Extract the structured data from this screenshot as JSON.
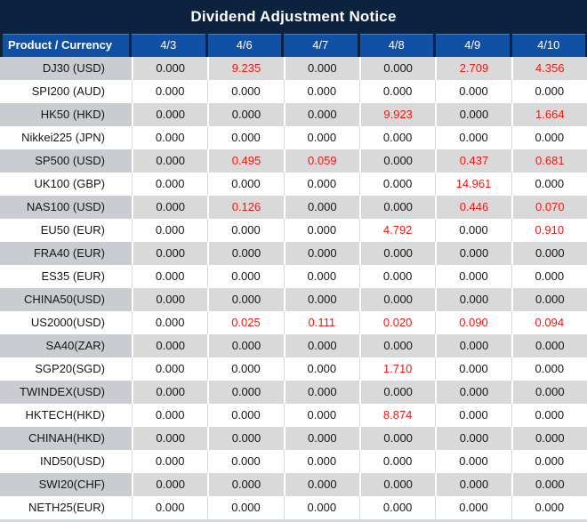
{
  "title": "Dividend Adjustment Notice",
  "colors": {
    "title_bar_navy": "#0c223e",
    "header_blue": "#1151a5",
    "header_text": "#ffffff",
    "row_gray": "#d9d9d9",
    "product_col_gray": "#c9ccd1",
    "value_black": "#161616",
    "value_red": "#fb1310"
  },
  "chart_data": {
    "type": "table",
    "title": "Dividend Adjustment Notice",
    "product_header": "Product / Currency",
    "date_headers": [
      "4/3",
      "4/6",
      "4/7",
      "4/8",
      "4/9",
      "4/10"
    ],
    "rows": [
      {
        "product": "DJ30 (USD)",
        "values": [
          "0.000",
          "9.235",
          "0.000",
          "0.000",
          "2.709",
          "4.356"
        ],
        "red_indices": [
          1,
          4,
          5
        ]
      },
      {
        "product": "SPI200 (AUD)",
        "values": [
          "0.000",
          "0.000",
          "0.000",
          "0.000",
          "0.000",
          "0.000"
        ],
        "red_indices": []
      },
      {
        "product": "HK50 (HKD)",
        "values": [
          "0.000",
          "0.000",
          "0.000",
          "9.923",
          "0.000",
          "1.664"
        ],
        "red_indices": [
          3,
          5
        ]
      },
      {
        "product": "Nikkei225 (JPN)",
        "values": [
          "0.000",
          "0.000",
          "0.000",
          "0.000",
          "0.000",
          "0.000"
        ],
        "red_indices": []
      },
      {
        "product": "SP500 (USD)",
        "values": [
          "0.000",
          "0.495",
          "0.059",
          "0.000",
          "0.437",
          "0.681"
        ],
        "red_indices": [
          1,
          2,
          4,
          5
        ]
      },
      {
        "product": "UK100 (GBP)",
        "values": [
          "0.000",
          "0.000",
          "0.000",
          "0.000",
          "14.961",
          "0.000"
        ],
        "red_indices": [
          4
        ]
      },
      {
        "product": "NAS100 (USD)",
        "values": [
          "0.000",
          "0.126",
          "0.000",
          "0.000",
          "0.446",
          "0.070"
        ],
        "red_indices": [
          1,
          4,
          5
        ]
      },
      {
        "product": "EU50 (EUR)",
        "values": [
          "0.000",
          "0.000",
          "0.000",
          "4.792",
          "0.000",
          "0.910"
        ],
        "red_indices": [
          3,
          5
        ]
      },
      {
        "product": "FRA40 (EUR)",
        "values": [
          "0.000",
          "0.000",
          "0.000",
          "0.000",
          "0.000",
          "0.000"
        ],
        "red_indices": []
      },
      {
        "product": "ES35 (EUR)",
        "values": [
          "0.000",
          "0.000",
          "0.000",
          "0.000",
          "0.000",
          "0.000"
        ],
        "red_indices": []
      },
      {
        "product": "CHINA50(USD)",
        "values": [
          "0.000",
          "0.000",
          "0.000",
          "0.000",
          "0.000",
          "0.000"
        ],
        "red_indices": []
      },
      {
        "product": "US2000(USD)",
        "values": [
          "0.000",
          "0.025",
          "0.111",
          "0.020",
          "0.090",
          "0.094"
        ],
        "red_indices": [
          1,
          2,
          3,
          4,
          5
        ]
      },
      {
        "product": "SA40(ZAR)",
        "values": [
          "0.000",
          "0.000",
          "0.000",
          "0.000",
          "0.000",
          "0.000"
        ],
        "red_indices": []
      },
      {
        "product": "SGP20(SGD)",
        "values": [
          "0.000",
          "0.000",
          "0.000",
          "1.710",
          "0.000",
          "0.000"
        ],
        "red_indices": [
          3
        ]
      },
      {
        "product": "TWINDEX(USD)",
        "values": [
          "0.000",
          "0.000",
          "0.000",
          "0.000",
          "0.000",
          "0.000"
        ],
        "red_indices": []
      },
      {
        "product": "HKTECH(HKD)",
        "values": [
          "0.000",
          "0.000",
          "0.000",
          "8.874",
          "0.000",
          "0.000"
        ],
        "red_indices": [
          3
        ]
      },
      {
        "product": "CHINAH(HKD)",
        "values": [
          "0.000",
          "0.000",
          "0.000",
          "0.000",
          "0.000",
          "0.000"
        ],
        "red_indices": []
      },
      {
        "product": "IND50(USD)",
        "values": [
          "0.000",
          "0.000",
          "0.000",
          "0.000",
          "0.000",
          "0.000"
        ],
        "red_indices": []
      },
      {
        "product": "SWI20(CHF)",
        "values": [
          "0.000",
          "0.000",
          "0.000",
          "0.000",
          "0.000",
          "0.000"
        ],
        "red_indices": []
      },
      {
        "product": "NETH25(EUR)",
        "values": [
          "0.000",
          "0.000",
          "0.000",
          "0.000",
          "0.000",
          "0.000"
        ],
        "red_indices": []
      }
    ]
  }
}
